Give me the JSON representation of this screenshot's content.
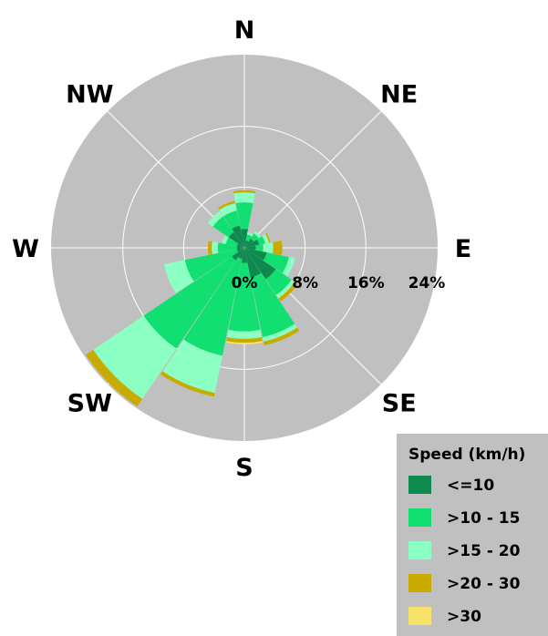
{
  "chart_data": {
    "type": "windrose",
    "directions": [
      "N",
      "NE",
      "E",
      "SE",
      "S",
      "SW",
      "W",
      "NW"
    ],
    "sector_angles": [
      0,
      22.5,
      45,
      67.5,
      90,
      112.5,
      135,
      157.5,
      180,
      202.5,
      225,
      247.5,
      270,
      292.5,
      315,
      337.5
    ],
    "r_ticks": [
      "0%",
      "8%",
      "16%",
      "24%"
    ],
    "r_max": 24,
    "legend": {
      "title": "Speed (km/h)",
      "entries": [
        {
          "label": "<=10",
          "color": "#0e8a4f"
        },
        {
          "label": ">10 - 15",
          "color": "#12df72"
        },
        {
          "label": ">15 - 20",
          "color": "#8cffc2"
        },
        {
          "label": ">20 - 30",
          "color": "#c9ab00"
        },
        {
          "label": ">30",
          "color": "#f7e36a"
        }
      ]
    },
    "series": [
      {
        "name": "<=10",
        "values": [
          2.5,
          1.0,
          1.5,
          2.0,
          1.5,
          3.0,
          5.0,
          4.0,
          2.0,
          1.5,
          2.0,
          1.0,
          1.0,
          1.0,
          2.5,
          3.0
        ]
      },
      {
        "name": ">10 - 15",
        "values": [
          3.5,
          0.8,
          0.8,
          0.8,
          1.0,
          3.0,
          2.5,
          8.0,
          9.0,
          13.0,
          14.0,
          7.0,
          2.5,
          1.5,
          2.5,
          2.0
        ]
      },
      {
        "name": ">15 - 20",
        "values": [
          1.3,
          0.3,
          0.3,
          0.5,
          1.3,
          0.8,
          0.5,
          0.6,
          1.0,
          5.0,
          8.0,
          2.8,
          0.8,
          0.5,
          0.8,
          1.0
        ]
      },
      {
        "name": ">20 - 30",
        "values": [
          0.3,
          0,
          0,
          0.2,
          1.2,
          0,
          0.5,
          0.5,
          0.5,
          0.5,
          1.2,
          0,
          0.5,
          0,
          0,
          0.3
        ]
      },
      {
        "name": ">30",
        "values": [
          0,
          0,
          0,
          0,
          0,
          0,
          0,
          0,
          0.2,
          0,
          0,
          0,
          0,
          0,
          0,
          0
        ]
      }
    ],
    "background_color": "#c0c0c0",
    "grid": true
  }
}
